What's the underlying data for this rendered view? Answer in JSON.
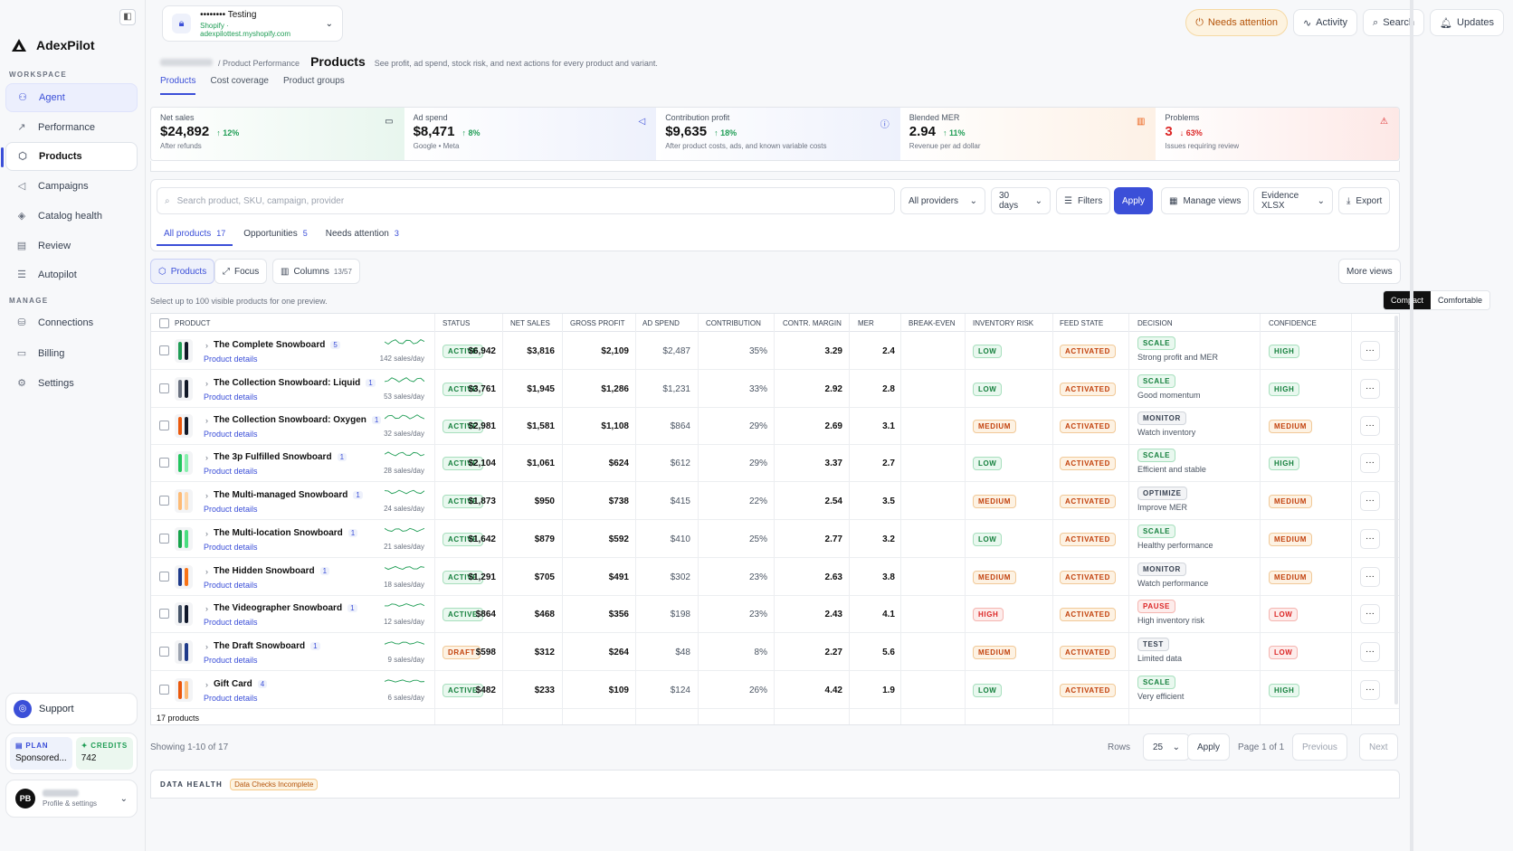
{
  "app": {
    "name": "AdexPilot"
  },
  "store": {
    "name": "•••••••• Testing",
    "sub": "Shopify · adexpilottest.myshopify.com"
  },
  "sidebar": {
    "workspace_label": "WORKSPACE",
    "manage_label": "MANAGE",
    "workspace_items": [
      {
        "label": "Agent",
        "icon": "agent-icon"
      },
      {
        "label": "Performance",
        "icon": "trend-icon"
      },
      {
        "label": "Products",
        "icon": "box-icon"
      },
      {
        "label": "Campaigns",
        "icon": "megaphone-icon"
      },
      {
        "label": "Catalog health",
        "icon": "tag-icon"
      },
      {
        "label": "Review",
        "icon": "clipboard-icon"
      },
      {
        "label": "Autopilot",
        "icon": "sliders-icon"
      }
    ],
    "manage_items": [
      {
        "label": "Connections",
        "icon": "database-icon"
      },
      {
        "label": "Billing",
        "icon": "card-icon"
      },
      {
        "label": "Settings",
        "icon": "gear-icon"
      }
    ],
    "support": "Support",
    "plan_label": "PLAN",
    "plan_value": "Sponsored...",
    "credits_label": "CREDITS",
    "credits_value": "742",
    "avatar": "PB",
    "profile_sub": "Profile & settings"
  },
  "topbar": {
    "needs_attention": "Needs attention",
    "activity": "Activity",
    "search": "Search",
    "updates": "Updates"
  },
  "page": {
    "crumb": "Product Performance",
    "title": "Products",
    "desc": "See profit, ad spend, stock risk, and next actions for every product and variant.",
    "tabs": [
      "Products",
      "Cost coverage",
      "Product groups"
    ]
  },
  "kpis": [
    {
      "label": "Net sales",
      "value": "$24,892",
      "delta": "12%",
      "dir": "up",
      "sub": "After refunds"
    },
    {
      "label": "Ad spend",
      "value": "$8,471",
      "delta": "8%",
      "dir": "up",
      "sub": "Google • Meta"
    },
    {
      "label": "Contribution profit",
      "value": "$9,635",
      "delta": "18%",
      "dir": "up",
      "sub": "After product costs, ads, and known variable costs"
    },
    {
      "label": "Blended MER",
      "value": "2.94",
      "delta": "11%",
      "dir": "up",
      "sub": "Revenue per ad dollar"
    },
    {
      "label": "Problems",
      "value": "3",
      "delta": "63%",
      "dir": "down",
      "sub": "Issues requiring review"
    }
  ],
  "filters": {
    "search_placeholder": "Search product, SKU, campaign, provider",
    "providers": "All providers",
    "range": "30 days",
    "filters": "Filters",
    "apply": "Apply",
    "manage_views": "Manage views",
    "evidence": "Evidence XLSX",
    "export": "Export",
    "subtabs": [
      {
        "label": "All products",
        "count": "17"
      },
      {
        "label": "Opportunities",
        "count": "5"
      },
      {
        "label": "Needs attention",
        "count": "3"
      }
    ]
  },
  "views": {
    "products": "Products",
    "focus": "Focus",
    "columns": "Columns",
    "columns_count": "13/57",
    "more_views": "More views",
    "compact": "Compact",
    "comfortable": "Comfortable"
  },
  "hint": "Select up to 100 visible products for one preview.",
  "table": {
    "headers": [
      "PRODUCT",
      "STATUS",
      "NET SALES",
      "GROSS PROFIT",
      "AD SPEND",
      "CONTRIBUTION",
      "CONTR. MARGIN",
      "MER",
      "BREAK-EVEN",
      "INVENTORY RISK",
      "FEED STATE",
      "DECISION",
      "CONFIDENCE"
    ],
    "link_label": "Product details",
    "rows": [
      {
        "name": "The Complete Snowboard",
        "variants": "5",
        "rate": "142 sales/day",
        "status": "ACTIVE",
        "net": "$6,942",
        "gross": "$3,816",
        "ad": "$2,109",
        "contrib": "$2,487",
        "margin": "35%",
        "mer": "3.29",
        "be": "2.4",
        "inv": "LOW",
        "feed": "ACTIVATED",
        "decision": "SCALE",
        "reason": "Strong profit and MER",
        "conf": "HIGH",
        "colors": [
          "#1f9d55",
          "#111827"
        ]
      },
      {
        "name": "The Collection Snowboard: Liquid",
        "variants": "1",
        "rate": "53 sales/day",
        "status": "ACTIVE",
        "net": "$3,761",
        "gross": "$1,945",
        "ad": "$1,286",
        "contrib": "$1,231",
        "margin": "33%",
        "mer": "2.92",
        "be": "2.8",
        "inv": "LOW",
        "feed": "ACTIVATED",
        "decision": "SCALE",
        "reason": "Good momentum",
        "conf": "HIGH",
        "colors": [
          "#6b7280",
          "#111827"
        ]
      },
      {
        "name": "The Collection Snowboard: Oxygen",
        "variants": "1",
        "rate": "32 sales/day",
        "status": "ACTIVE",
        "net": "$2,981",
        "gross": "$1,581",
        "ad": "$1,108",
        "contrib": "$864",
        "margin": "29%",
        "mer": "2.69",
        "be": "3.1",
        "inv": "MEDIUM",
        "feed": "ACTIVATED",
        "decision": "MONITOR",
        "reason": "Watch inventory",
        "conf": "MEDIUM",
        "colors": [
          "#ea580c",
          "#111827"
        ]
      },
      {
        "name": "The 3p Fulfilled Snowboard",
        "variants": "1",
        "rate": "28 sales/day",
        "status": "ACTIVE",
        "net": "$2,104",
        "gross": "$1,061",
        "ad": "$624",
        "contrib": "$612",
        "margin": "29%",
        "mer": "3.37",
        "be": "2.7",
        "inv": "LOW",
        "feed": "ACTIVATED",
        "decision": "SCALE",
        "reason": "Efficient and stable",
        "conf": "HIGH",
        "colors": [
          "#22c55e",
          "#86efac"
        ]
      },
      {
        "name": "The Multi-managed Snowboard",
        "variants": "1",
        "rate": "24 sales/day",
        "status": "ACTIVE",
        "net": "$1,873",
        "gross": "$950",
        "ad": "$738",
        "contrib": "$415",
        "margin": "22%",
        "mer": "2.54",
        "be": "3.5",
        "inv": "MEDIUM",
        "feed": "ACTIVATED",
        "decision": "OPTIMIZE",
        "reason": "Improve MER",
        "conf": "MEDIUM",
        "colors": [
          "#fdba74",
          "#fed7aa"
        ]
      },
      {
        "name": "The Multi-location Snowboard",
        "variants": "1",
        "rate": "21 sales/day",
        "status": "ACTIVE",
        "net": "$1,642",
        "gross": "$879",
        "ad": "$592",
        "contrib": "$410",
        "margin": "25%",
        "mer": "2.77",
        "be": "3.2",
        "inv": "LOW",
        "feed": "ACTIVATED",
        "decision": "SCALE",
        "reason": "Healthy performance",
        "conf": "MEDIUM",
        "colors": [
          "#16a34a",
          "#4ade80"
        ]
      },
      {
        "name": "The Hidden Snowboard",
        "variants": "1",
        "rate": "18 sales/day",
        "status": "ACTIVE",
        "net": "$1,291",
        "gross": "$705",
        "ad": "$491",
        "contrib": "$302",
        "margin": "23%",
        "mer": "2.63",
        "be": "3.8",
        "inv": "MEDIUM",
        "feed": "ACTIVATED",
        "decision": "MONITOR",
        "reason": "Watch performance",
        "conf": "MEDIUM",
        "colors": [
          "#1e3a8a",
          "#f97316"
        ]
      },
      {
        "name": "The Videographer Snowboard",
        "variants": "1",
        "rate": "12 sales/day",
        "status": "ACTIVE",
        "net": "$864",
        "gross": "$468",
        "ad": "$356",
        "contrib": "$198",
        "margin": "23%",
        "mer": "2.43",
        "be": "4.1",
        "inv": "HIGH",
        "feed": "ACTIVATED",
        "decision": "PAUSE",
        "reason": "High inventory risk",
        "conf": "LOW",
        "colors": [
          "#475569",
          "#0f172a"
        ]
      },
      {
        "name": "The Draft Snowboard",
        "variants": "1",
        "rate": "9 sales/day",
        "status": "DRAFT",
        "net": "$598",
        "gross": "$312",
        "ad": "$264",
        "contrib": "$48",
        "margin": "8%",
        "mer": "2.27",
        "be": "5.6",
        "inv": "MEDIUM",
        "feed": "ACTIVATED",
        "decision": "TEST",
        "reason": "Limited data",
        "conf": "LOW",
        "colors": [
          "#9ca3af",
          "#1e3a8a"
        ]
      },
      {
        "name": "Gift Card",
        "variants": "4",
        "rate": "6 sales/day",
        "status": "ACTIVE",
        "net": "$482",
        "gross": "$233",
        "ad": "$109",
        "contrib": "$124",
        "margin": "26%",
        "mer": "4.42",
        "be": "1.9",
        "inv": "LOW",
        "feed": "ACTIVATED",
        "decision": "SCALE",
        "reason": "Very efficient",
        "conf": "HIGH",
        "colors": [
          "#ea580c",
          "#fdba74"
        ]
      }
    ],
    "footer": "17 products"
  },
  "pager": {
    "showing": "Showing 1-10 of 17",
    "rows_label": "Rows",
    "rows_value": "25",
    "apply": "Apply",
    "page": "Page 1 of 1",
    "previous": "Previous",
    "next": "Next"
  },
  "data_health": {
    "label": "DATA HEALTH",
    "badge": "Data Checks Incomplete"
  }
}
